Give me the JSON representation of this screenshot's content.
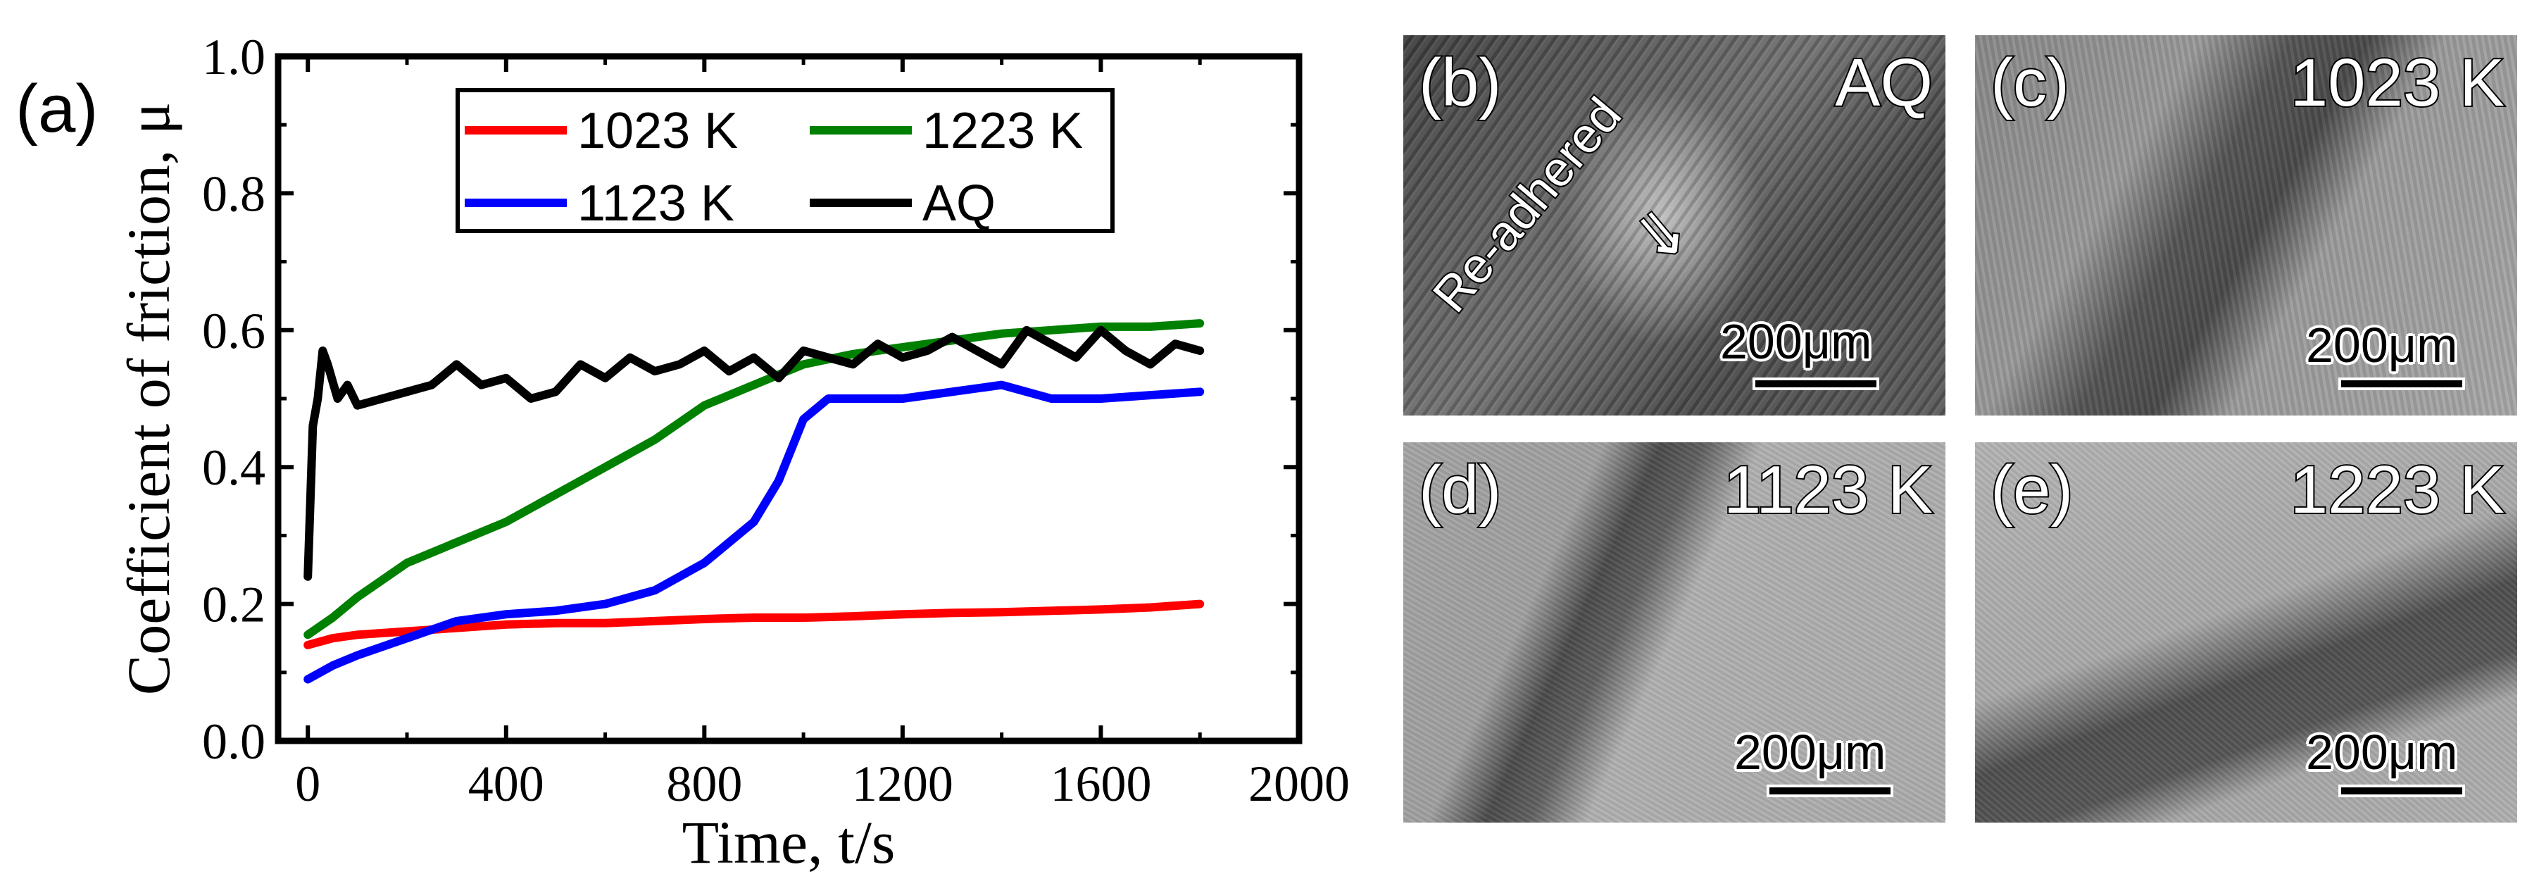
{
  "chart_data": {
    "type": "line",
    "panel_label": "(a)",
    "xlabel": "Time, t/s",
    "ylabel": "Coefficient of friction, μ",
    "xlim": [
      -60,
      2000
    ],
    "ylim": [
      0.0,
      1.0
    ],
    "xticks": [
      "0",
      "400",
      "800",
      "1200",
      "1600",
      "2000"
    ],
    "yticks": [
      "0.0",
      "0.2",
      "0.4",
      "0.6",
      "0.8",
      "1.0"
    ],
    "legend": "top-center",
    "series": [
      {
        "name": "1023 K",
        "color": "#ff0000",
        "x": [
          0,
          50,
          100,
          200,
          300,
          400,
          500,
          600,
          700,
          800,
          900,
          1000,
          1100,
          1200,
          1300,
          1400,
          1500,
          1600,
          1700,
          1800
        ],
        "y": [
          0.14,
          0.15,
          0.155,
          0.16,
          0.165,
          0.17,
          0.172,
          0.172,
          0.175,
          0.178,
          0.18,
          0.18,
          0.182,
          0.185,
          0.187,
          0.188,
          0.19,
          0.192,
          0.195,
          0.2
        ]
      },
      {
        "name": "1223 K",
        "color": "#008000",
        "x": [
          0,
          50,
          100,
          200,
          300,
          400,
          500,
          600,
          700,
          800,
          900,
          1000,
          1100,
          1200,
          1300,
          1400,
          1500,
          1600,
          1700,
          1800
        ],
        "y": [
          0.155,
          0.18,
          0.21,
          0.26,
          0.29,
          0.32,
          0.36,
          0.4,
          0.44,
          0.49,
          0.52,
          0.55,
          0.565,
          0.575,
          0.585,
          0.595,
          0.6,
          0.605,
          0.605,
          0.61
        ]
      },
      {
        "name": "1123 K",
        "color": "#0000ff",
        "x": [
          0,
          50,
          100,
          200,
          300,
          400,
          500,
          600,
          700,
          800,
          850,
          900,
          950,
          1000,
          1050,
          1100,
          1200,
          1300,
          1400,
          1500,
          1600,
          1700,
          1800
        ],
        "y": [
          0.09,
          0.11,
          0.125,
          0.15,
          0.175,
          0.185,
          0.19,
          0.2,
          0.22,
          0.26,
          0.29,
          0.32,
          0.38,
          0.47,
          0.5,
          0.5,
          0.5,
          0.51,
          0.52,
          0.5,
          0.5,
          0.505,
          0.51
        ]
      },
      {
        "name": "AQ",
        "color": "#000000",
        "x": [
          0,
          10,
          20,
          30,
          40,
          60,
          80,
          100,
          150,
          200,
          250,
          300,
          350,
          400,
          450,
          500,
          550,
          600,
          650,
          700,
          750,
          800,
          850,
          900,
          950,
          1000,
          1050,
          1100,
          1150,
          1200,
          1250,
          1300,
          1350,
          1400,
          1450,
          1500,
          1550,
          1600,
          1650,
          1700,
          1750,
          1800
        ],
        "y": [
          0.24,
          0.46,
          0.5,
          0.57,
          0.55,
          0.5,
          0.52,
          0.49,
          0.5,
          0.51,
          0.52,
          0.55,
          0.52,
          0.53,
          0.5,
          0.51,
          0.55,
          0.53,
          0.56,
          0.54,
          0.55,
          0.57,
          0.54,
          0.56,
          0.53,
          0.57,
          0.56,
          0.55,
          0.58,
          0.56,
          0.57,
          0.59,
          0.57,
          0.55,
          0.6,
          0.58,
          0.56,
          0.6,
          0.57,
          0.55,
          0.58,
          0.57
        ]
      }
    ]
  },
  "micrographs": [
    {
      "label": "(b)",
      "condition": "AQ",
      "scale_bar": "200μm",
      "annotation": "Re-adhered",
      "arrow": "⇓"
    },
    {
      "label": "(c)",
      "condition": "1023 K",
      "scale_bar": "200μm"
    },
    {
      "label": "(d)",
      "condition": "1123 K",
      "scale_bar": "200μm"
    },
    {
      "label": "(e)",
      "condition": "1223 K",
      "scale_bar": "200μm"
    }
  ]
}
